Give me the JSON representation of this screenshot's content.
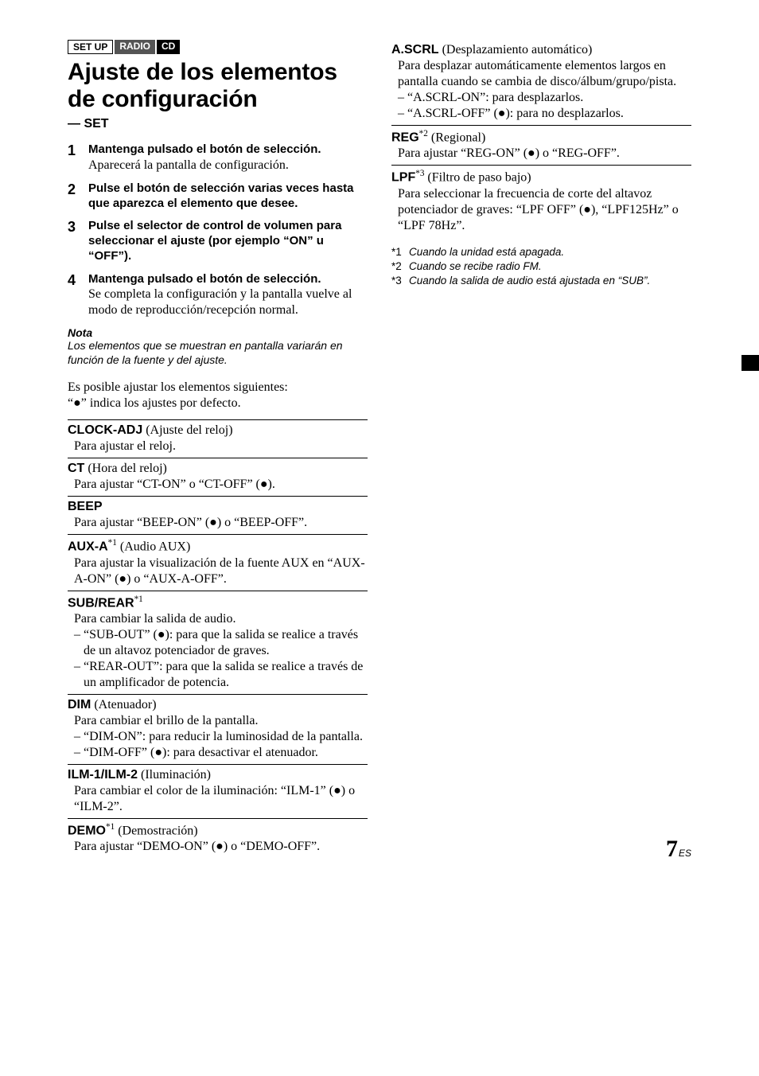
{
  "tags": {
    "setup": "SET UP",
    "radio": "RADIO",
    "cd": "CD"
  },
  "heading": "Ajuste de los elementos de configuración",
  "subhead": "— SET",
  "steps": [
    {
      "title": "Mantenga pulsado el botón de selección.",
      "desc": "Aparecerá la pantalla de configuración."
    },
    {
      "title": "Pulse el botón de selección varias veces hasta que aparezca el elemento que desee."
    },
    {
      "title": "Pulse el selector de control de volumen para seleccionar el ajuste (por ejemplo “ON” u “OFF”)."
    },
    {
      "title": "Mantenga pulsado el botón de selección.",
      "desc": "Se completa la configuración y la pantalla vuelve al modo de reproducción/recepción normal."
    }
  ],
  "nota": {
    "h": "Nota",
    "body": "Los elementos que se muestran en pantalla variarán en función de la fuente y del ajuste."
  },
  "intro": {
    "l1": "Es posible ajustar los elementos siguientes:",
    "l2": "“●” indica los ajustes por defecto."
  },
  "left_items": [
    {
      "name": "CLOCK-ADJ",
      "paren": " (Ajuste del reloj)",
      "desc": "Para ajustar el reloj."
    },
    {
      "name": "CT",
      "paren": " (Hora del reloj)",
      "desc": "Para ajustar “CT-ON” o “CT-OFF” (●)."
    },
    {
      "name": "BEEP",
      "desc": "Para ajustar “BEEP-ON” (●) o “BEEP-OFF”."
    },
    {
      "name": "AUX-A",
      "sup": "*1",
      "paren": " (Audio AUX)",
      "desc": "Para ajustar la visualización de la fuente AUX en “AUX-A-ON” (●) o “AUX-A-OFF”."
    },
    {
      "name": "SUB/REAR",
      "sup": "*1",
      "desc": "Para cambiar la salida de audio.",
      "sub": [
        "“SUB-OUT” (●): para que la salida se realice a través de un altavoz potenciador de graves.",
        "“REAR-OUT”: para que la salida se realice a través de un amplificador de potencia."
      ]
    },
    {
      "name": "DIM",
      "paren": " (Atenuador)",
      "desc": "Para cambiar el brillo de la pantalla.",
      "sub": [
        "“DIM-ON”: para reducir la luminosidad de la pantalla.",
        "“DIM-OFF” (●): para desactivar el atenuador."
      ]
    },
    {
      "name": "ILM-1/ILM-2",
      "paren": " (Iluminación)",
      "desc": "Para cambiar el color de la iluminación: “ILM-1” (●) o “ILM-2”."
    },
    {
      "name": "DEMO",
      "sup": "*1",
      "paren": " (Demostración)",
      "desc": "Para ajustar “DEMO-ON” (●) o “DEMO-OFF”."
    }
  ],
  "right_items": [
    {
      "name": "A.SCRL",
      "paren": " (Desplazamiento automático)",
      "desc": "Para desplazar automáticamente elementos largos en pantalla cuando se cambia de disco/álbum/grupo/pista.",
      "sub": [
        "“A.SCRL-ON”: para desplazarlos.",
        "“A.SCRL-OFF” (●): para no desplazarlos."
      ]
    },
    {
      "name": "REG",
      "sup": "*2",
      "paren": " (Regional)",
      "desc": "Para ajustar “REG-ON” (●) o “REG-OFF”."
    },
    {
      "name": "LPF",
      "sup": "*3",
      "paren": " (Filtro de paso bajo)",
      "desc": "Para seleccionar la frecuencia de corte del altavoz potenciador de graves: “LPF OFF” (●), “LPF125Hz” o “LPF 78Hz”."
    }
  ],
  "footnotes": [
    {
      "mark": "*1",
      "text": "Cuando la unidad está apagada."
    },
    {
      "mark": "*2",
      "text": "Cuando se recibe radio FM."
    },
    {
      "mark": "*3",
      "text": "Cuando la salida de audio está ajustada en “SUB”."
    }
  ],
  "page": {
    "num": "7",
    "suffix": "ES"
  }
}
